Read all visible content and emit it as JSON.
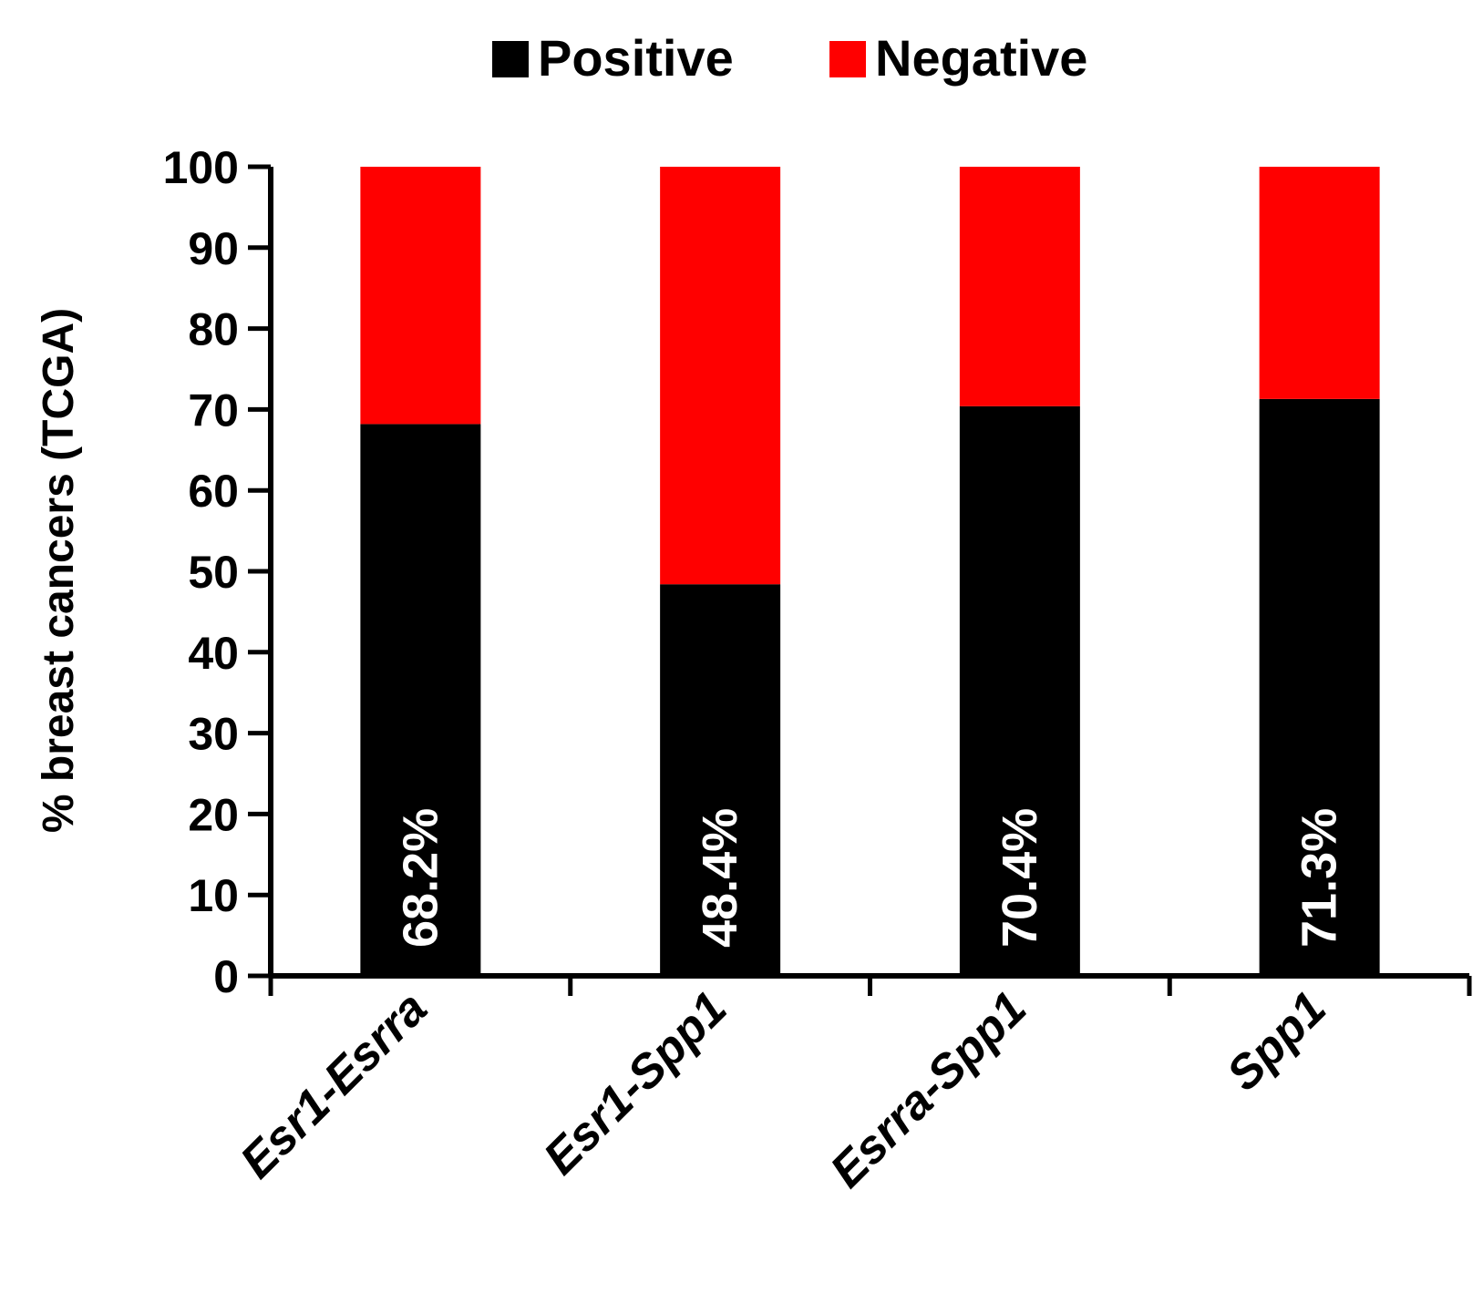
{
  "chart_data": {
    "type": "bar",
    "stacked": true,
    "categories": [
      "Esr1-Esrra",
      "Esr1-Spp1",
      "Esrra-Spp1",
      "Spp1"
    ],
    "series": [
      {
        "name": "Positive",
        "color": "#000000",
        "values": [
          68.2,
          48.4,
          70.4,
          71.3
        ]
      },
      {
        "name": "Negative",
        "color": "#ff0000",
        "values": [
          31.8,
          51.6,
          29.6,
          28.7
        ]
      }
    ],
    "data_labels": [
      "68.2%",
      "48.4%",
      "70.4%",
      "71.3%"
    ],
    "ylabel": "% breast cancers (TCGA)",
    "xlabel": "",
    "title": "",
    "ylim": [
      0,
      100
    ],
    "yticks": [
      "0",
      "10",
      "20",
      "30",
      "40",
      "50",
      "60",
      "70",
      "80",
      "90",
      "100"
    ],
    "legend_position": "top-center",
    "grid": false
  }
}
